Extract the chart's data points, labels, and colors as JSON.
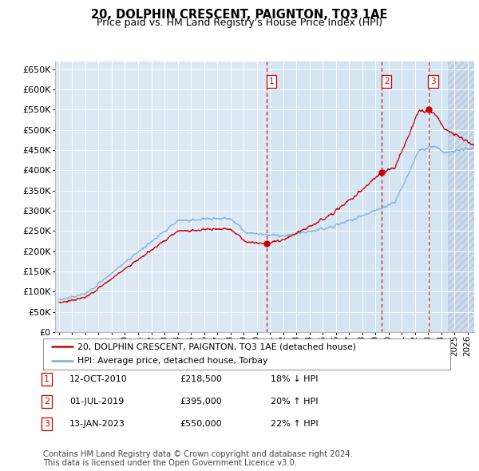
{
  "title": "20, DOLPHIN CRESCENT, PAIGNTON, TQ3 1AE",
  "subtitle": "Price paid vs. HM Land Registry's House Price Index (HPI)",
  "ytick_values": [
    0,
    50000,
    100000,
    150000,
    200000,
    250000,
    300000,
    350000,
    400000,
    450000,
    500000,
    550000,
    600000,
    650000
  ],
  "ylim": [
    0,
    670000
  ],
  "xlim_start": 1994.7,
  "xlim_end": 2026.5,
  "background_color": "#dce9f5",
  "highlight_color": "#ccddf0",
  "grid_color": "#ffffff",
  "red_line_color": "#cc0000",
  "blue_line_color": "#7aadd4",
  "transaction1": {
    "date": 2010.78,
    "price": 218500,
    "label": "1"
  },
  "transaction2": {
    "date": 2019.5,
    "price": 395000,
    "label": "2"
  },
  "transaction3": {
    "date": 2023.04,
    "price": 550000,
    "label": "3"
  },
  "legend_entries": [
    "20, DOLPHIN CRESCENT, PAIGNTON, TQ3 1AE (detached house)",
    "HPI: Average price, detached house, Torbay"
  ],
  "table_rows": [
    [
      "1",
      "12-OCT-2010",
      "£218,500",
      "18% ↓ HPI"
    ],
    [
      "2",
      "01-JUL-2019",
      "£395,000",
      "20% ↑ HPI"
    ],
    [
      "3",
      "13-JAN-2023",
      "£550,000",
      "22% ↑ HPI"
    ]
  ],
  "footnote": "Contains HM Land Registry data © Crown copyright and database right 2024.\nThis data is licensed under the Open Government Licence v3.0."
}
